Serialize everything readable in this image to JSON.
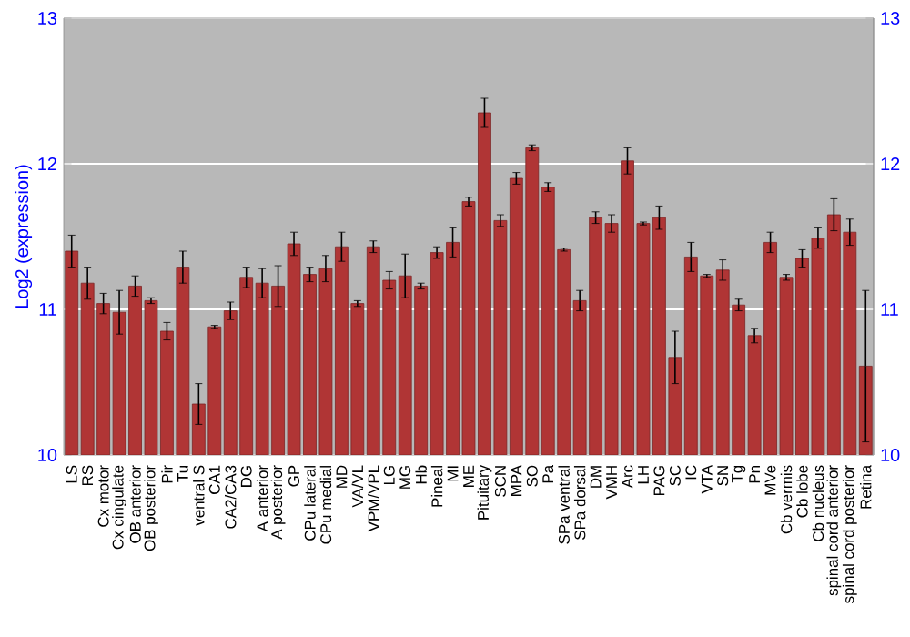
{
  "chart_data": {
    "type": "bar",
    "ylabel": "Log2 (expression)",
    "categories": [
      "LS",
      "RS",
      "Cx motor",
      "Cx cingulate",
      "OB anterior",
      "OB posterior",
      "Pir",
      "Tu",
      "ventral S",
      "CA1",
      "CA2/CA3",
      "DG",
      "A anterior",
      "A posterior",
      "GP",
      "CPu lateral",
      "CPu medial",
      "MD",
      "VA/VL",
      "VPM/VPL",
      "LG",
      "MG",
      "Hb",
      "Pineal",
      "MI",
      "ME",
      "Pituitary",
      "SCN",
      "MPA",
      "SO",
      "Pa",
      "SPa ventral",
      "SPa dorsal",
      "DM",
      "VMH",
      "Arc",
      "LH",
      "PAG",
      "SC",
      "IC",
      "VTA",
      "SN",
      "Tg",
      "Pn",
      "MVe",
      "Cb vermis",
      "Cb lobe",
      "Cb nucleus",
      "spinal cord anterior",
      "spinal cord posterior",
      "Retina"
    ],
    "values": [
      11.4,
      11.18,
      11.04,
      10.98,
      11.16,
      11.06,
      10.85,
      11.29,
      10.35,
      10.88,
      10.99,
      11.22,
      11.18,
      11.16,
      11.45,
      11.24,
      11.28,
      11.43,
      11.04,
      11.43,
      11.2,
      11.23,
      11.16,
      11.39,
      11.46,
      11.74,
      12.35,
      11.61,
      11.9,
      12.11,
      11.84,
      11.41,
      11.06,
      11.63,
      11.59,
      12.02,
      11.59,
      11.63,
      10.67,
      11.36,
      11.23,
      11.27,
      11.03,
      10.82,
      11.46,
      11.22,
      11.35,
      11.49,
      11.65,
      11.53,
      10.61
    ],
    "errors": [
      0.11,
      0.11,
      0.07,
      0.15,
      0.07,
      0.02,
      0.06,
      0.11,
      0.14,
      0.01,
      0.06,
      0.07,
      0.1,
      0.14,
      0.08,
      0.05,
      0.09,
      0.1,
      0.02,
      0.04,
      0.06,
      0.15,
      0.02,
      0.04,
      0.1,
      0.03,
      0.1,
      0.04,
      0.04,
      0.02,
      0.03,
      0.01,
      0.07,
      0.04,
      0.06,
      0.09,
      0.01,
      0.08,
      0.18,
      0.1,
      0.01,
      0.07,
      0.04,
      0.05,
      0.07,
      0.02,
      0.06,
      0.07,
      0.11,
      0.09,
      0.52
    ],
    "color": "#b03535",
    "ylim": [
      10,
      13
    ],
    "yticks": [
      10,
      11,
      12,
      13
    ],
    "y2lim": [
      10,
      13
    ],
    "y2ticks": [
      10,
      11,
      12,
      13
    ],
    "grid": "y"
  }
}
